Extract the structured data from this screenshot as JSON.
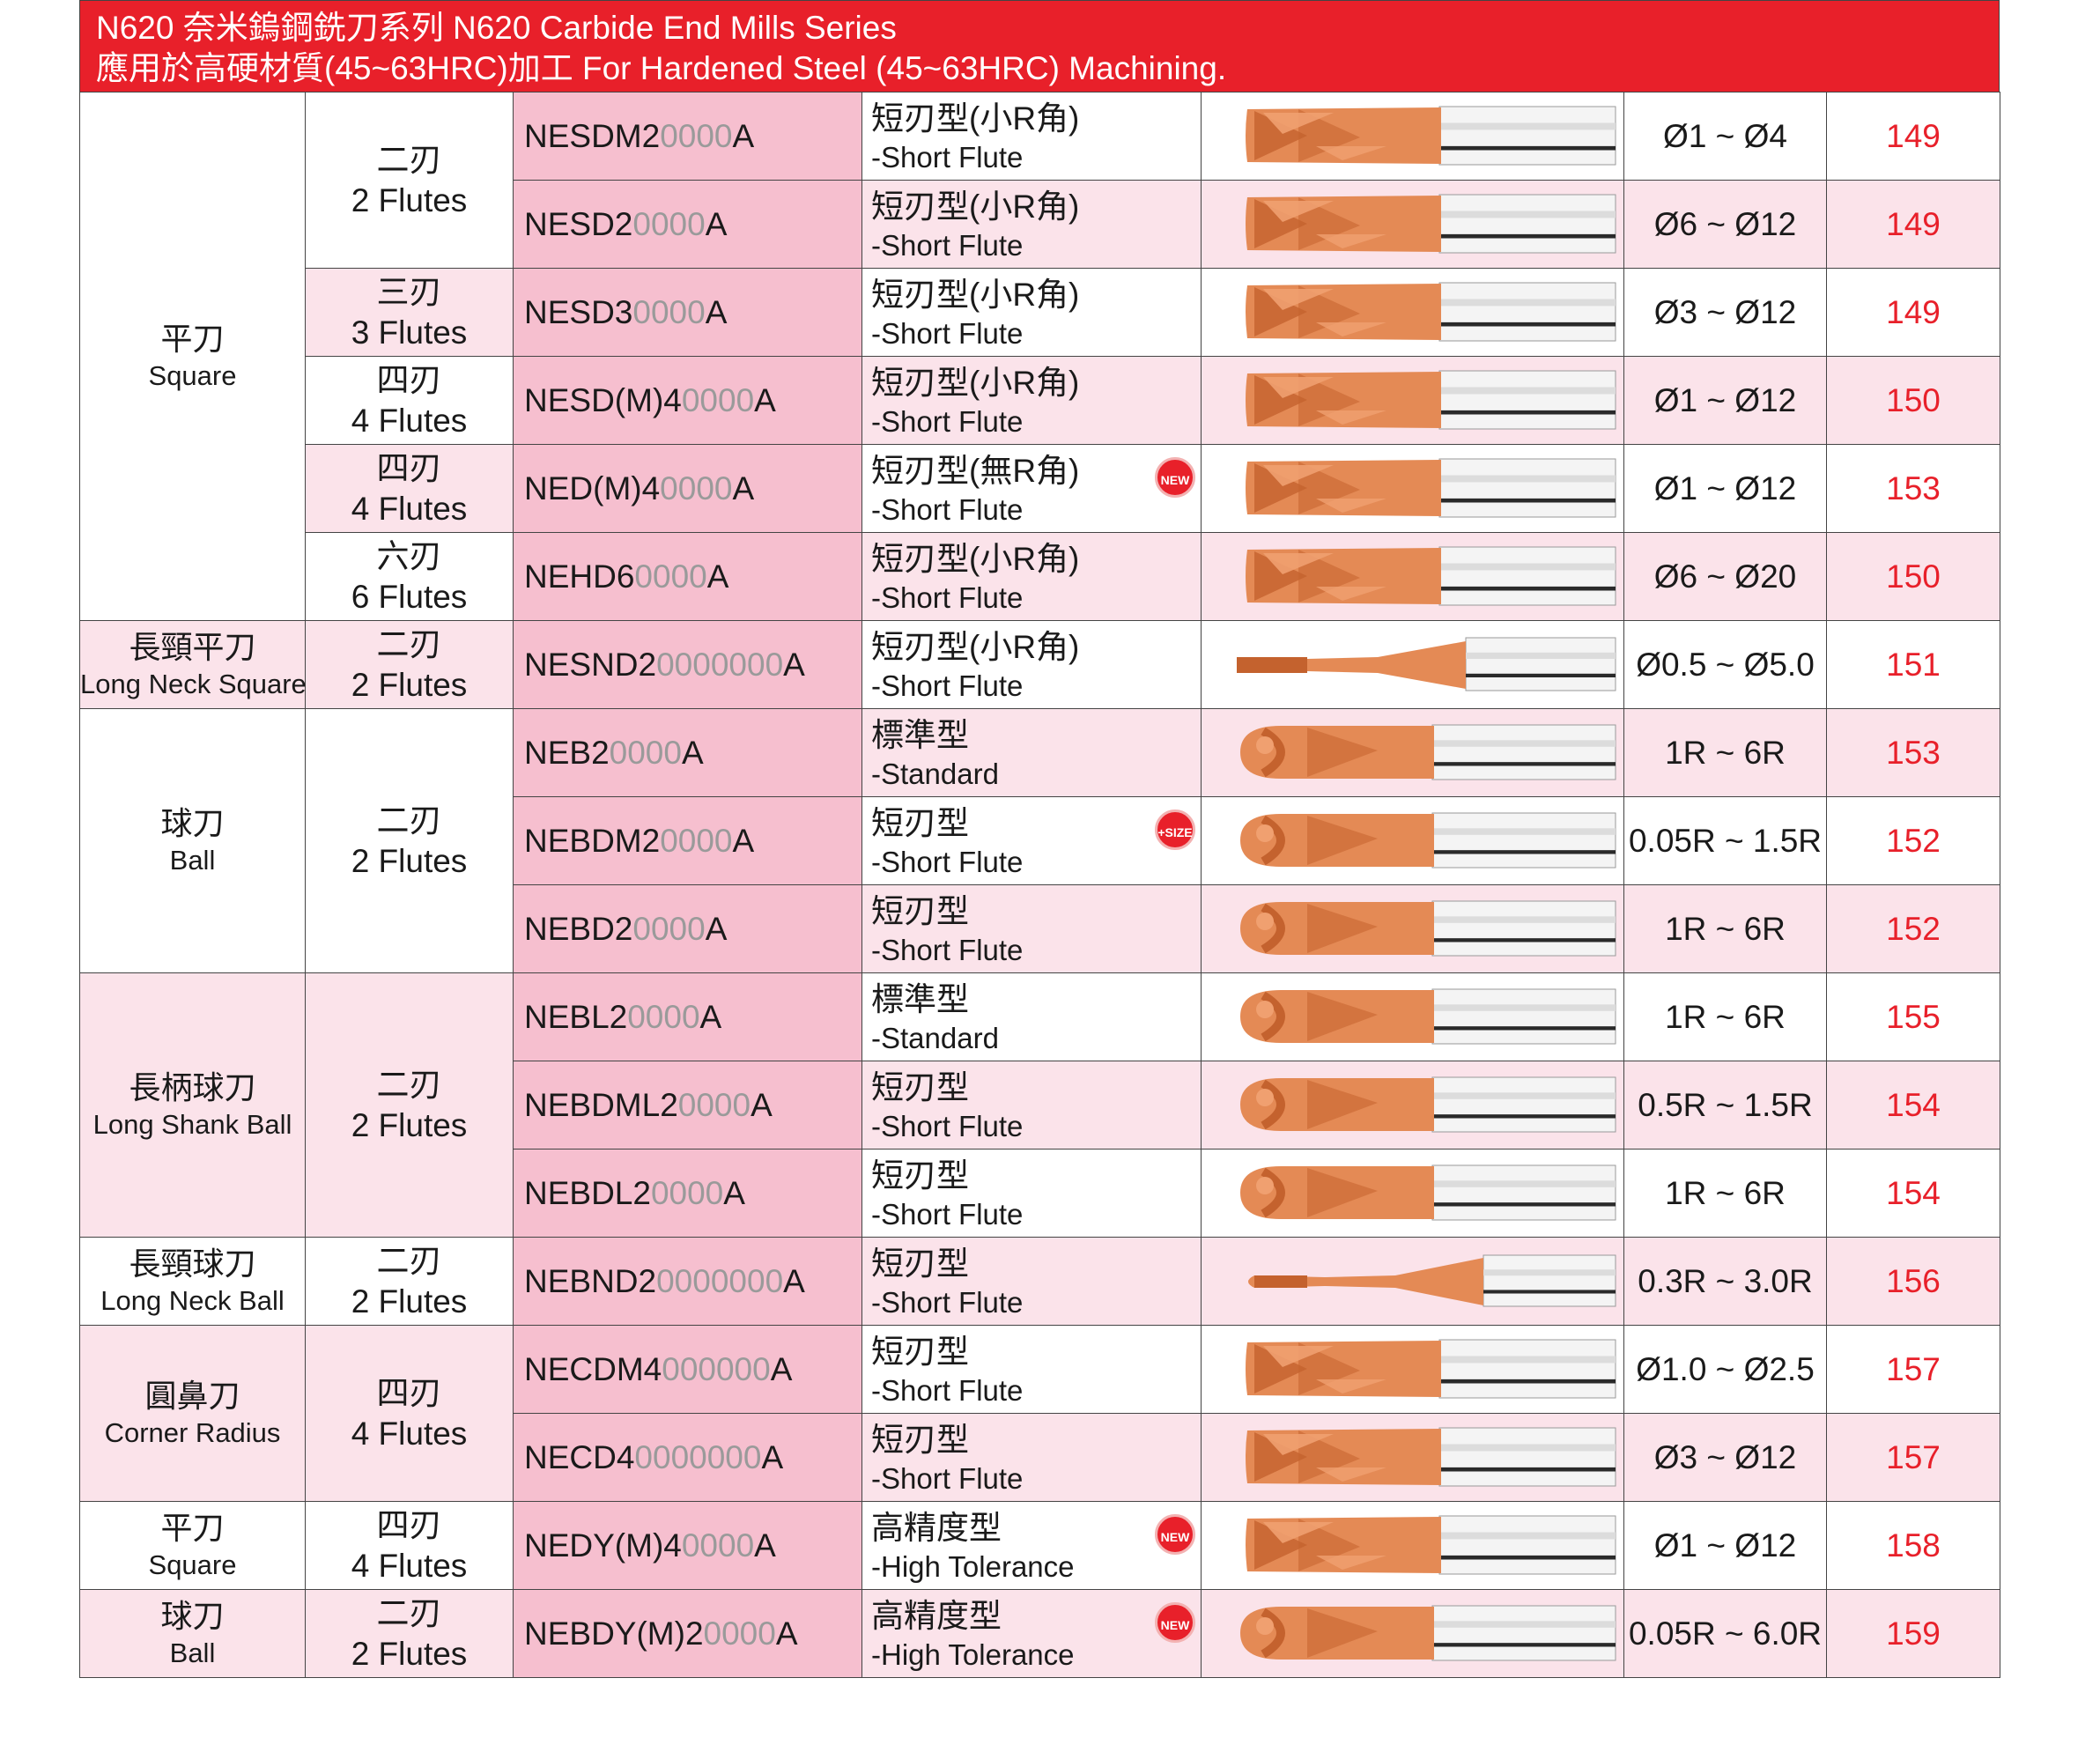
{
  "header": {
    "line1": "N620 奈米鎢鋼銑刀系列 N620 Carbide End Mills Series",
    "line2": "應用於高硬材質(45~63HRC)加工 For Hardened Steel (45~63HRC) Machining."
  },
  "categories": [
    {
      "zh": "平刀",
      "en": "Square"
    },
    {
      "zh": "長頸平刀",
      "en": "Long Neck Square"
    },
    {
      "zh": "球刀",
      "en": "Ball"
    },
    {
      "zh": "長柄球刀",
      "en": "Long Shank Ball"
    },
    {
      "zh": "長頸球刀",
      "en": "Long Neck Ball"
    },
    {
      "zh": "圓鼻刀",
      "en": "Corner Radius"
    },
    {
      "zh": "平刀",
      "en": "Square"
    },
    {
      "zh": "球刀",
      "en": "Ball"
    }
  ],
  "flutes": [
    {
      "zh": "二刃",
      "en": "2 Flutes"
    },
    {
      "zh": "三刃",
      "en": "3 Flutes"
    },
    {
      "zh": "四刃",
      "en": "4 Flutes"
    },
    {
      "zh": "四刃",
      "en": "4 Flutes"
    },
    {
      "zh": "六刃",
      "en": "6 Flutes"
    },
    {
      "zh": "二刃",
      "en": "2 Flutes"
    },
    {
      "zh": "二刃",
      "en": "2 Flutes"
    },
    {
      "zh": "二刃",
      "en": "2 Flutes"
    },
    {
      "zh": "二刃",
      "en": "2 Flutes"
    },
    {
      "zh": "四刃",
      "en": "4 Flutes"
    },
    {
      "zh": "四刃",
      "en": "4 Flutes"
    },
    {
      "zh": "二刃",
      "en": "2 Flutes"
    }
  ],
  "rows": [
    {
      "code_prefix": "NESDM2",
      "code_zeros": "0000",
      "code_suffix": "A",
      "type_zh": "短刃型(小R角)",
      "type_en": "-Short Flute",
      "range": "Ø1 ~ Ø4",
      "page": "149"
    },
    {
      "code_prefix": "NESD2",
      "code_zeros": "0000",
      "code_suffix": "A",
      "type_zh": "短刃型(小R角)",
      "type_en": "-Short Flute",
      "range": "Ø6 ~ Ø12",
      "page": "149"
    },
    {
      "code_prefix": "NESD3",
      "code_zeros": "0000",
      "code_suffix": "A",
      "type_zh": "短刃型(小R角)",
      "type_en": "-Short Flute",
      "range": "Ø3 ~ Ø12",
      "page": "149"
    },
    {
      "code_prefix": "NESD(M)4",
      "code_zeros": "0000",
      "code_suffix": "A",
      "type_zh": "短刃型(小R角)",
      "type_en": "-Short Flute",
      "range": "Ø1 ~ Ø12",
      "page": "150"
    },
    {
      "code_prefix": "NED(M)4",
      "code_zeros": "0000",
      "code_suffix": "A",
      "type_zh": "短刃型(無R角)",
      "type_en": "-Short Flute",
      "range": "Ø1 ~ Ø12",
      "page": "153",
      "badge": "NEW"
    },
    {
      "code_prefix": "NEHD6",
      "code_zeros": "0000",
      "code_suffix": "A",
      "type_zh": "短刃型(小R角)",
      "type_en": "-Short Flute",
      "range": "Ø6 ~ Ø20",
      "page": "150"
    },
    {
      "code_prefix": "NESND2",
      "code_zeros": "0000000",
      "code_suffix": "A",
      "type_zh": "短刃型(小R角)",
      "type_en": "-Short Flute",
      "range": "Ø0.5 ~ Ø5.0",
      "page": "151"
    },
    {
      "code_prefix": "NEB2",
      "code_zeros": "0000",
      "code_suffix": "A",
      "type_zh": "標準型",
      "type_en": "-Standard",
      "range": "1R ~ 6R",
      "page": "153"
    },
    {
      "code_prefix": "NEBDM2",
      "code_zeros": "0000",
      "code_suffix": "A",
      "type_zh": "短刃型",
      "type_en": "-Short Flute",
      "range": "0.05R ~ 1.5R",
      "page": "152",
      "badge": "+SIZE"
    },
    {
      "code_prefix": "NEBD2",
      "code_zeros": "0000",
      "code_suffix": "A",
      "type_zh": "短刃型",
      "type_en": "-Short Flute",
      "range": "1R ~ 6R",
      "page": "152"
    },
    {
      "code_prefix": "NEBL2",
      "code_zeros": "0000",
      "code_suffix": "A",
      "type_zh": "標準型",
      "type_en": "-Standard",
      "range": "1R ~ 6R",
      "page": "155"
    },
    {
      "code_prefix": "NEBDML2",
      "code_zeros": "0000",
      "code_suffix": "A",
      "type_zh": "短刃型",
      "type_en": "-Short Flute",
      "range": "0.5R ~ 1.5R",
      "page": "154"
    },
    {
      "code_prefix": "NEBDL2",
      "code_zeros": "0000",
      "code_suffix": "A",
      "type_zh": "短刃型",
      "type_en": "-Short Flute",
      "range": "1R ~ 6R",
      "page": "154"
    },
    {
      "code_prefix": "NEBND2",
      "code_zeros": "0000000",
      "code_suffix": "A",
      "type_zh": "短刃型",
      "type_en": "-Short Flute",
      "range": "0.3R ~ 3.0R",
      "page": "156"
    },
    {
      "code_prefix": "NECDM4",
      "code_zeros": "000000",
      "code_suffix": "A",
      "type_zh": "短刃型",
      "type_en": "-Short Flute",
      "range": "Ø1.0 ~ Ø2.5",
      "page": "157"
    },
    {
      "code_prefix": "NECD4",
      "code_zeros": "0000000",
      "code_suffix": "A",
      "type_zh": "短刃型",
      "type_en": "-Short Flute",
      "range": "Ø3 ~ Ø12",
      "page": "157"
    },
    {
      "code_prefix": "NEDY(M)4",
      "code_zeros": "0000",
      "code_suffix": "A",
      "type_zh": "高精度型",
      "type_en": "-High Tolerance",
      "range": "Ø1 ~ Ø12",
      "page": "158",
      "badge": "NEW"
    },
    {
      "code_prefix": "NEBDY(M)2",
      "code_zeros": "0000",
      "code_suffix": "A",
      "type_zh": "高精度型",
      "type_en": "-High Tolerance",
      "range": "0.05R ~ 6.0R",
      "page": "159",
      "badge": "NEW"
    }
  ],
  "colors": {
    "header_red": "#e8202a",
    "code_pink": "#f6bfcf",
    "row_pink": "#fbe3ea",
    "page_red": "#e8202a",
    "tool_copper": "#d9804a"
  },
  "tool_icons": [
    "flat-end-mill-icon",
    "flat-end-mill-icon",
    "flat-end-mill-icon",
    "flat-end-mill-icon",
    "flat-end-mill-icon",
    "flat-end-mill-icon",
    "long-neck-flat-end-mill-icon",
    "ball-end-mill-icon",
    "ball-end-mill-icon",
    "ball-end-mill-icon",
    "ball-end-mill-icon",
    "ball-end-mill-icon",
    "ball-end-mill-icon",
    "long-neck-ball-end-mill-icon",
    "corner-radius-end-mill-icon",
    "corner-radius-end-mill-icon",
    "flat-end-mill-icon",
    "ball-end-mill-icon"
  ]
}
